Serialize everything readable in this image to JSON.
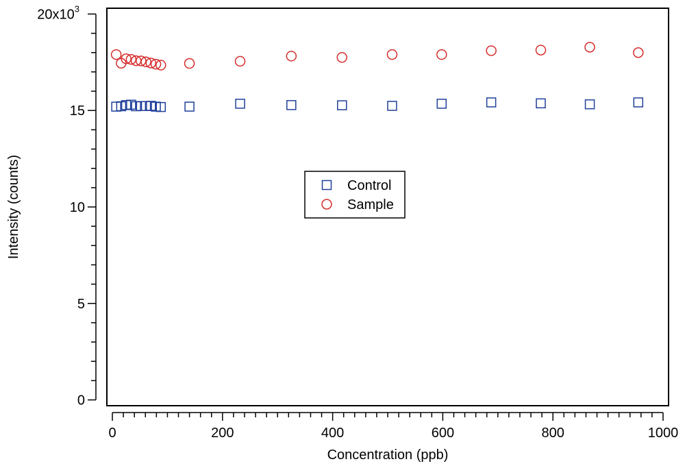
{
  "chart_data": {
    "type": "scatter",
    "title": "",
    "xlabel": "Concentration (ppb)",
    "ylabel": "Intensity (counts)",
    "xlim": [
      -10,
      1010
    ],
    "ylim": [
      -300,
      20300
    ],
    "x_ticks": [
      0,
      200,
      400,
      600,
      800,
      1000
    ],
    "x_tick_labels": [
      "0",
      "200",
      "400",
      "600",
      "800",
      "1000"
    ],
    "x_minor_step": 20,
    "y_ticks": [
      0,
      5000,
      10000,
      15000,
      20000
    ],
    "y_tick_labels": [
      "0",
      "5",
      "10",
      "15",
      "20x10"
    ],
    "y_tick_exponent": "3",
    "y_minor_step": 1000,
    "grid": false,
    "legend_position": "center",
    "series": [
      {
        "name": "Control",
        "marker": "square",
        "color": "#1f3f9a",
        "x": [
          7,
          16,
          25,
          34,
          43,
          52,
          61,
          70,
          79,
          88,
          140,
          232,
          325,
          417,
          508,
          598,
          688,
          778,
          867,
          955
        ],
        "y": [
          15200,
          15220,
          15280,
          15300,
          15220,
          15230,
          15230,
          15240,
          15200,
          15180,
          15200,
          15350,
          15280,
          15270,
          15240,
          15350,
          15420,
          15370,
          15320,
          15420
        ]
      },
      {
        "name": "Sample",
        "marker": "circle",
        "color": "#d62c2c",
        "x": [
          7,
          16,
          25,
          34,
          43,
          52,
          61,
          70,
          79,
          88,
          140,
          232,
          325,
          417,
          508,
          598,
          688,
          778,
          867,
          955
        ],
        "y": [
          17900,
          17450,
          17680,
          17650,
          17580,
          17570,
          17520,
          17460,
          17400,
          17350,
          17440,
          17550,
          17820,
          17750,
          17900,
          17900,
          18100,
          18130,
          18280,
          18000
        ]
      }
    ]
  }
}
